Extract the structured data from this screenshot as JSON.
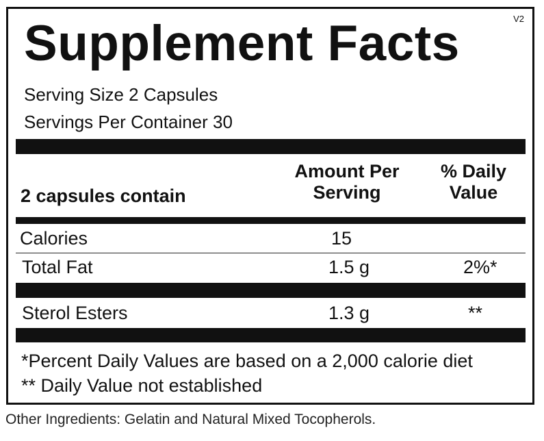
{
  "label": {
    "version": "V2",
    "title": "Supplement Facts",
    "serving_size": "Serving Size 2 Capsules",
    "servings_per_container": "Servings Per Container 30"
  },
  "table": {
    "header": {
      "col1": "2 capsules contain",
      "col2_line1": "Amount Per",
      "col2_line2": "Serving",
      "col3_line1": "% Daily",
      "col3_line2": "Value"
    },
    "rows": [
      {
        "name": "Calories",
        "amount": "15",
        "dv": ""
      },
      {
        "name": "Total Fat",
        "amount": "1.5 g",
        "dv": "2%*"
      },
      {
        "name": "Sterol Esters",
        "amount": "1.3 g",
        "dv": "**"
      }
    ]
  },
  "footnotes": {
    "note1": "*Percent Daily Values are based on a 2,000 calorie diet",
    "note2": "** Daily Value not established"
  },
  "other_ingredients": "Other Ingredients: Gelatin and Natural Mixed Tocopherols.",
  "colors": {
    "ink": "#111111",
    "background": "#ffffff"
  }
}
